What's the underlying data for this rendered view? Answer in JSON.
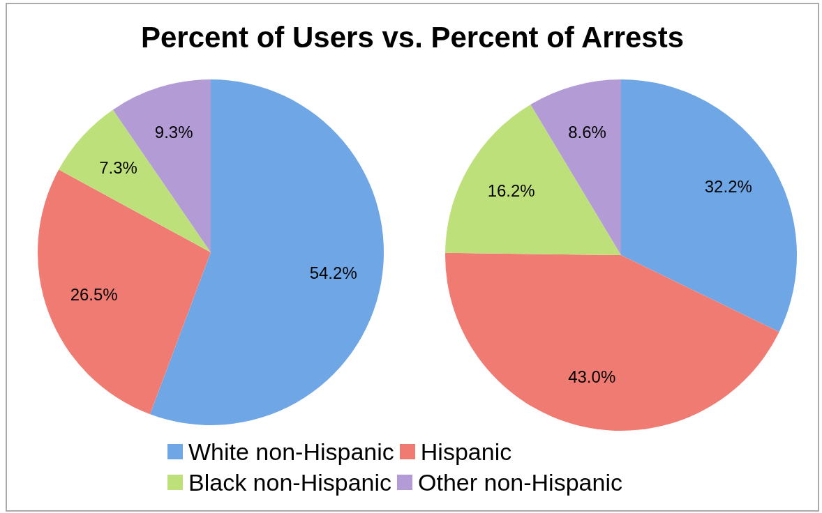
{
  "chart_data": {
    "type": "pie",
    "title": "Percent of Users vs. Percent of Arrests",
    "categories": [
      "White non-Hispanic",
      "Hispanic",
      "Black non-Hispanic",
      "Other non-Hispanic"
    ],
    "colors": [
      "#6fa6e6",
      "#ef7b72",
      "#bde07a",
      "#b39bd6"
    ],
    "legend": "bottom",
    "series": [
      {
        "values": [
          54.2,
          26.5,
          7.3,
          9.3
        ],
        "value_labels": [
          "54.2%",
          "26.5%",
          "7.3%",
          "9.3%"
        ]
      },
      {
        "values": [
          32.2,
          43.0,
          16.2,
          8.6
        ],
        "value_labels": [
          "32.2%",
          "43.0%",
          "16.2%",
          "8.6%"
        ]
      }
    ]
  }
}
